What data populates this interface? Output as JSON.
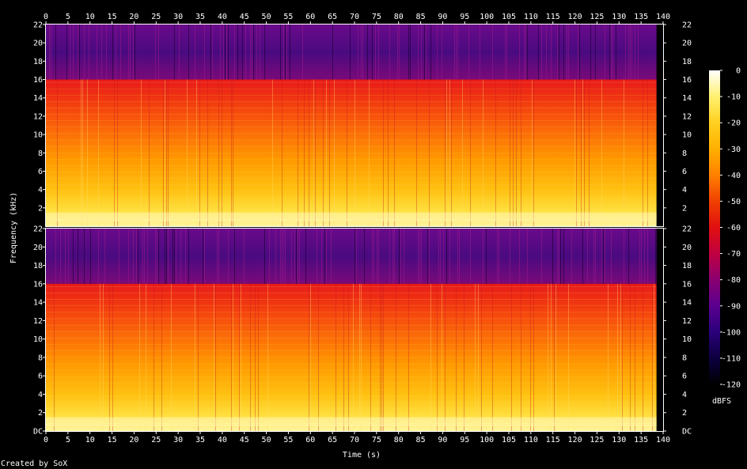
{
  "footer": {
    "credit": "Created by SoX"
  },
  "chart_data": {
    "type": "heatmap",
    "xlabel": "Time (s)",
    "ylabel": "Frequency (kHz)",
    "xlim": [
      0,
      140
    ],
    "x_ticks": [
      "0",
      "5",
      "10",
      "15",
      "20",
      "25",
      "30",
      "35",
      "40",
      "45",
      "50",
      "55",
      "60",
      "65",
      "70",
      "75",
      "80",
      "85",
      "90",
      "95",
      "100",
      "105",
      "110",
      "115",
      "120",
      "125",
      "130",
      "135",
      "140"
    ],
    "audio_duration_s": 138.5,
    "ylim_khz": [
      0,
      22
    ],
    "y_ticks_upper": [
      "2",
      "4",
      "6",
      "8",
      "10",
      "12",
      "14",
      "16",
      "18",
      "20",
      "22"
    ],
    "y_ticks_lower": [
      "DC",
      "2",
      "4",
      "6",
      "8",
      "10",
      "12",
      "14",
      "16",
      "18",
      "20",
      "22"
    ],
    "lowpass_cutoff_khz": 16,
    "channels": 2,
    "colorbar": {
      "label": "dBFS",
      "range": [
        -120,
        0
      ],
      "ticks": [
        "0",
        "-10",
        "-20",
        "-30",
        "-40",
        "-50",
        "-60",
        "-70",
        "-80",
        "-90",
        "-100",
        "-110",
        "-120"
      ],
      "stops": [
        "#ffffff",
        "#fff070",
        "#ffd020",
        "#ffb000",
        "#ff8000",
        "#f04000",
        "#e01010",
        "#c00040",
        "#8a0070",
        "#5a0090",
        "#2a007a",
        "#0c0040",
        "#000000"
      ]
    }
  }
}
